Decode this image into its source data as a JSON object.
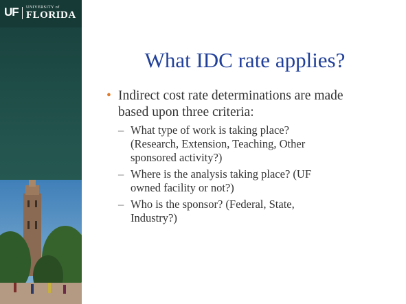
{
  "logo": {
    "mark": "UF",
    "name_top": "UNIVERSITY of",
    "name": "FLORIDA"
  },
  "slide": {
    "title": "What IDC rate applies?",
    "bullets": [
      {
        "text": "Indirect cost rate determinations are made based upon three criteria:",
        "sub_bullets": [
          "What type of work is taking place? (Research, Extension, Teaching, Other sponsored activity?)",
          "Where is the analysis taking place? (UF owned facility or not?)",
          "Who is the sponsor? (Federal, State, Industry?)"
        ]
      }
    ]
  }
}
